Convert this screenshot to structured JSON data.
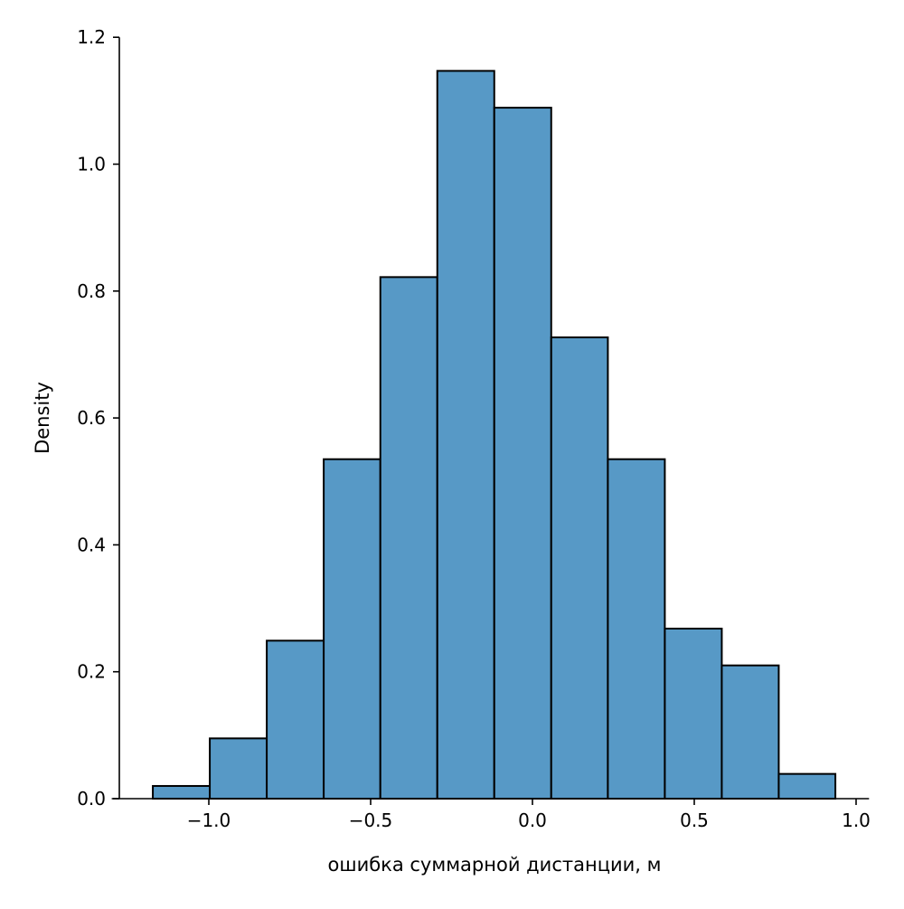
{
  "chart_data": {
    "type": "bar",
    "subtype": "histogram",
    "xlabel": "ошибка суммарной дистанции, м",
    "ylabel": "Density",
    "xlim": [
      -1.3,
      1.04
    ],
    "ylim": [
      0,
      1.2
    ],
    "grid": false,
    "bar_color": "#5799c6",
    "edge_color": "#000000",
    "bin_edges": [
      -1.173,
      -0.997,
      -0.821,
      -0.645,
      -0.47,
      -0.294,
      -0.118,
      0.058,
      0.233,
      0.409,
      0.585,
      0.761,
      0.936
    ],
    "values": [
      0.02,
      0.095,
      0.249,
      0.535,
      0.822,
      1.147,
      1.089,
      0.727,
      0.535,
      0.268,
      0.21,
      0.039
    ],
    "x_ticks": [
      -1.0,
      -0.5,
      0.0,
      0.5,
      1.0
    ],
    "x_tick_labels": [
      "−1.0",
      "−0.5",
      "0.0",
      "0.5",
      "1.0"
    ],
    "y_ticks": [
      0,
      0.2,
      0.4,
      0.6,
      0.8,
      1.0,
      1.2
    ],
    "y_tick_labels": [
      "0.0",
      "0.2",
      "0.4",
      "0.6",
      "0.8",
      "1.0",
      "1.2"
    ]
  }
}
